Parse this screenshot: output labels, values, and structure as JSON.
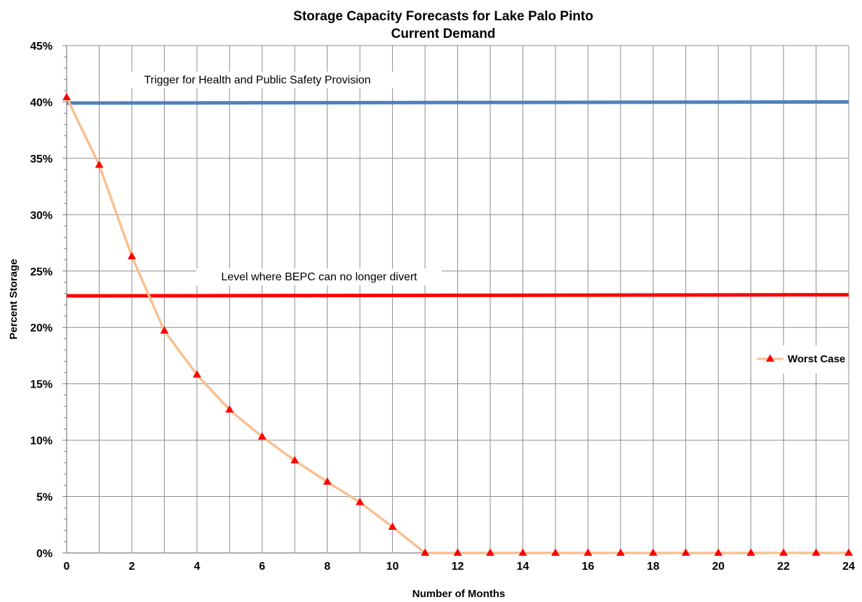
{
  "chart_data": {
    "type": "line",
    "title": "Storage Capacity Forecasts for Lake Palo Pinto",
    "subtitle": "Current Demand",
    "xlabel": "Number of Months",
    "ylabel": "Percent Storage",
    "xlim": [
      0,
      24
    ],
    "ylim": [
      0,
      45
    ],
    "x_ticks": [
      "0",
      "2",
      "4",
      "6",
      "8",
      "10",
      "12",
      "14",
      "16",
      "18",
      "20",
      "22",
      "24"
    ],
    "y_ticks": [
      "0%",
      "5%",
      "10%",
      "15%",
      "20%",
      "25%",
      "30%",
      "35%",
      "40%",
      "45%"
    ],
    "grid": true,
    "legend_position": "right",
    "x": [
      0,
      1,
      2,
      3,
      4,
      5,
      6,
      7,
      8,
      9,
      10,
      11,
      12,
      13,
      14,
      15,
      16,
      17,
      18,
      19,
      20,
      21,
      22,
      23,
      24
    ],
    "series": [
      {
        "name": "Worst Case",
        "values": [
          40.4,
          34.4,
          26.3,
          19.7,
          15.8,
          12.7,
          10.3,
          8.2,
          6.3,
          4.5,
          2.3,
          0,
          0,
          0,
          0,
          0,
          0,
          0,
          0,
          0,
          0,
          0,
          0,
          0,
          0
        ],
        "line_color": "#f9bf8f",
        "marker_color": "#ff0000"
      }
    ],
    "reference_lines": [
      {
        "label": "Trigger for Health and Public Safety Provision",
        "y_start": 39.9,
        "y_end": 40.0,
        "color": "#4f81bd"
      },
      {
        "label": "Level where BEPC can no longer divert",
        "y_start": 22.8,
        "y_end": 22.9,
        "color": "#ff0000"
      }
    ]
  }
}
